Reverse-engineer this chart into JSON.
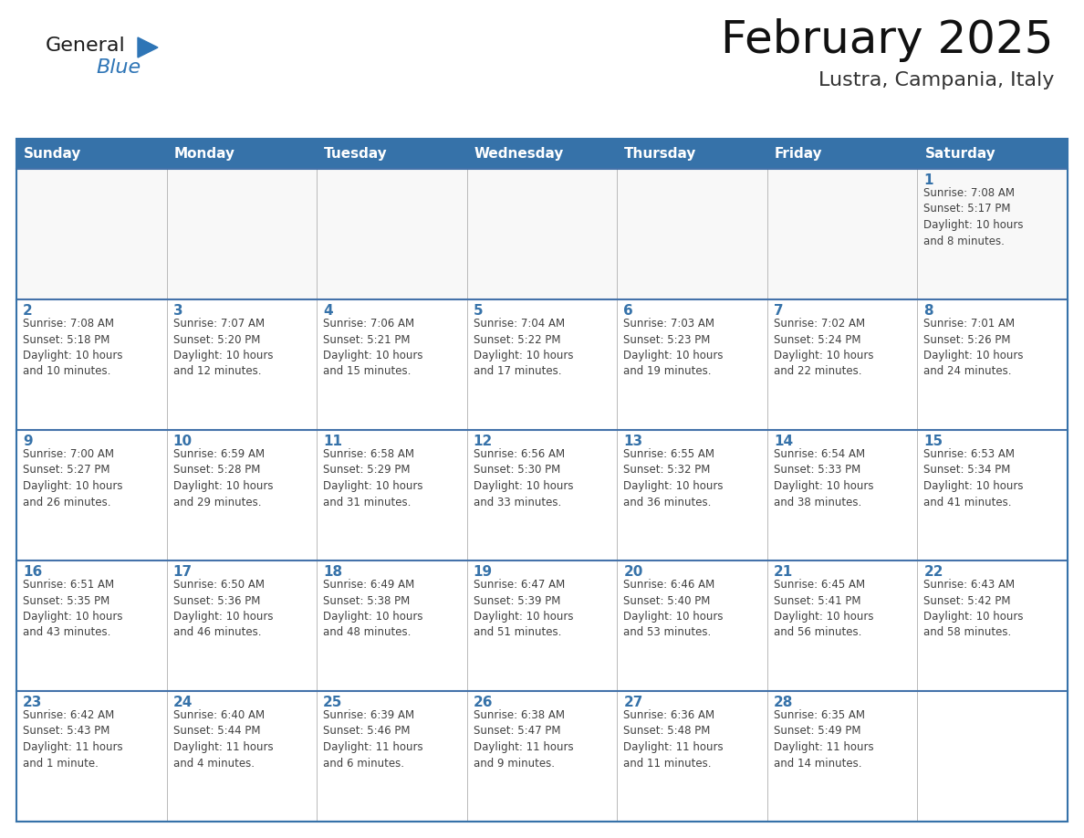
{
  "title": "February 2025",
  "subtitle": "Lustra, Campania, Italy",
  "header_bg": "#3672A9",
  "header_text_color": "#FFFFFF",
  "cell_bg": "#FFFFFF",
  "cell_border_color": "#3672A9",
  "day_number_color": "#3672A9",
  "detail_text_color": "#404040",
  "row_sep_color": "#4472AA",
  "days_of_week": [
    "Sunday",
    "Monday",
    "Tuesday",
    "Wednesday",
    "Thursday",
    "Friday",
    "Saturday"
  ],
  "weeks": [
    [
      {
        "day": "",
        "info": ""
      },
      {
        "day": "",
        "info": ""
      },
      {
        "day": "",
        "info": ""
      },
      {
        "day": "",
        "info": ""
      },
      {
        "day": "",
        "info": ""
      },
      {
        "day": "",
        "info": ""
      },
      {
        "day": "1",
        "info": "Sunrise: 7:08 AM\nSunset: 5:17 PM\nDaylight: 10 hours\nand 8 minutes."
      }
    ],
    [
      {
        "day": "2",
        "info": "Sunrise: 7:08 AM\nSunset: 5:18 PM\nDaylight: 10 hours\nand 10 minutes."
      },
      {
        "day": "3",
        "info": "Sunrise: 7:07 AM\nSunset: 5:20 PM\nDaylight: 10 hours\nand 12 minutes."
      },
      {
        "day": "4",
        "info": "Sunrise: 7:06 AM\nSunset: 5:21 PM\nDaylight: 10 hours\nand 15 minutes."
      },
      {
        "day": "5",
        "info": "Sunrise: 7:04 AM\nSunset: 5:22 PM\nDaylight: 10 hours\nand 17 minutes."
      },
      {
        "day": "6",
        "info": "Sunrise: 7:03 AM\nSunset: 5:23 PM\nDaylight: 10 hours\nand 19 minutes."
      },
      {
        "day": "7",
        "info": "Sunrise: 7:02 AM\nSunset: 5:24 PM\nDaylight: 10 hours\nand 22 minutes."
      },
      {
        "day": "8",
        "info": "Sunrise: 7:01 AM\nSunset: 5:26 PM\nDaylight: 10 hours\nand 24 minutes."
      }
    ],
    [
      {
        "day": "9",
        "info": "Sunrise: 7:00 AM\nSunset: 5:27 PM\nDaylight: 10 hours\nand 26 minutes."
      },
      {
        "day": "10",
        "info": "Sunrise: 6:59 AM\nSunset: 5:28 PM\nDaylight: 10 hours\nand 29 minutes."
      },
      {
        "day": "11",
        "info": "Sunrise: 6:58 AM\nSunset: 5:29 PM\nDaylight: 10 hours\nand 31 minutes."
      },
      {
        "day": "12",
        "info": "Sunrise: 6:56 AM\nSunset: 5:30 PM\nDaylight: 10 hours\nand 33 minutes."
      },
      {
        "day": "13",
        "info": "Sunrise: 6:55 AM\nSunset: 5:32 PM\nDaylight: 10 hours\nand 36 minutes."
      },
      {
        "day": "14",
        "info": "Sunrise: 6:54 AM\nSunset: 5:33 PM\nDaylight: 10 hours\nand 38 minutes."
      },
      {
        "day": "15",
        "info": "Sunrise: 6:53 AM\nSunset: 5:34 PM\nDaylight: 10 hours\nand 41 minutes."
      }
    ],
    [
      {
        "day": "16",
        "info": "Sunrise: 6:51 AM\nSunset: 5:35 PM\nDaylight: 10 hours\nand 43 minutes."
      },
      {
        "day": "17",
        "info": "Sunrise: 6:50 AM\nSunset: 5:36 PM\nDaylight: 10 hours\nand 46 minutes."
      },
      {
        "day": "18",
        "info": "Sunrise: 6:49 AM\nSunset: 5:38 PM\nDaylight: 10 hours\nand 48 minutes."
      },
      {
        "day": "19",
        "info": "Sunrise: 6:47 AM\nSunset: 5:39 PM\nDaylight: 10 hours\nand 51 minutes."
      },
      {
        "day": "20",
        "info": "Sunrise: 6:46 AM\nSunset: 5:40 PM\nDaylight: 10 hours\nand 53 minutes."
      },
      {
        "day": "21",
        "info": "Sunrise: 6:45 AM\nSunset: 5:41 PM\nDaylight: 10 hours\nand 56 minutes."
      },
      {
        "day": "22",
        "info": "Sunrise: 6:43 AM\nSunset: 5:42 PM\nDaylight: 10 hours\nand 58 minutes."
      }
    ],
    [
      {
        "day": "23",
        "info": "Sunrise: 6:42 AM\nSunset: 5:43 PM\nDaylight: 11 hours\nand 1 minute."
      },
      {
        "day": "24",
        "info": "Sunrise: 6:40 AM\nSunset: 5:44 PM\nDaylight: 11 hours\nand 4 minutes."
      },
      {
        "day": "25",
        "info": "Sunrise: 6:39 AM\nSunset: 5:46 PM\nDaylight: 11 hours\nand 6 minutes."
      },
      {
        "day": "26",
        "info": "Sunrise: 6:38 AM\nSunset: 5:47 PM\nDaylight: 11 hours\nand 9 minutes."
      },
      {
        "day": "27",
        "info": "Sunrise: 6:36 AM\nSunset: 5:48 PM\nDaylight: 11 hours\nand 11 minutes."
      },
      {
        "day": "28",
        "info": "Sunrise: 6:35 AM\nSunset: 5:49 PM\nDaylight: 11 hours\nand 14 minutes."
      },
      {
        "day": "",
        "info": ""
      }
    ]
  ],
  "logo_color_general": "#1a1a1a",
  "logo_color_blue": "#2E75B6",
  "logo_triangle_color": "#2E75B6",
  "title_fontsize": 36,
  "subtitle_fontsize": 16,
  "header_fontsize": 11,
  "day_num_fontsize": 11,
  "detail_fontsize": 8.5
}
